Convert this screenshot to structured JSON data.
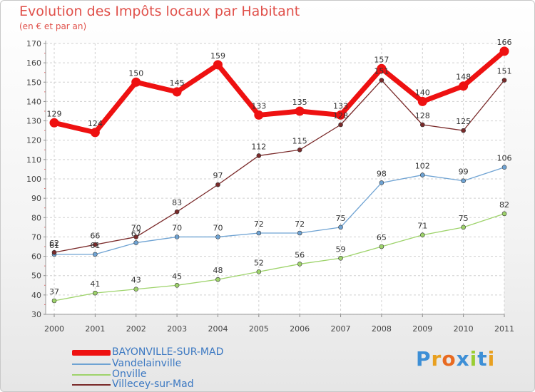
{
  "chart_data": {
    "type": "line",
    "title": "Evolution des Impôts locaux par Habitant",
    "subtitle": "(en € et par an)",
    "xlabel": "",
    "ylabel": "",
    "ylim": [
      30,
      170
    ],
    "yticks": [
      30,
      40,
      50,
      60,
      70,
      80,
      90,
      100,
      110,
      120,
      130,
      140,
      150,
      160,
      170
    ],
    "categories": [
      "2000",
      "2001",
      "2002",
      "2003",
      "2004",
      "2005",
      "2006",
      "2007",
      "2008",
      "2009",
      "2010",
      "2011"
    ],
    "grid": true,
    "legend_position": "bottom-left",
    "series": [
      {
        "name": "BAYONVILLE-SUR-MAD",
        "color": "#ee1111",
        "values": [
          129,
          124,
          150,
          145,
          159,
          133,
          135,
          133,
          157,
          140,
          148,
          166
        ]
      },
      {
        "name": "Vandelainville",
        "color": "#6fa3d3",
        "values": [
          61,
          61,
          67,
          70,
          70,
          72,
          72,
          75,
          98,
          102,
          99,
          106
        ]
      },
      {
        "name": "Onville",
        "color": "#9ed36b",
        "values": [
          37,
          41,
          43,
          45,
          48,
          52,
          56,
          59,
          65,
          71,
          75,
          82
        ]
      },
      {
        "name": "Villecey-sur-Mad",
        "color": "#7a2a2a",
        "values": [
          62,
          66,
          70,
          83,
          97,
          112,
          115,
          128,
          151,
          128,
          125,
          151
        ]
      }
    ]
  },
  "logo": {
    "text": "Proxiti",
    "colors": [
      "#3d8fd6",
      "#e8a020",
      "#e86a20",
      "#3d8fd6",
      "#9acd32",
      "#3d8fd6",
      "#e8a020"
    ]
  }
}
